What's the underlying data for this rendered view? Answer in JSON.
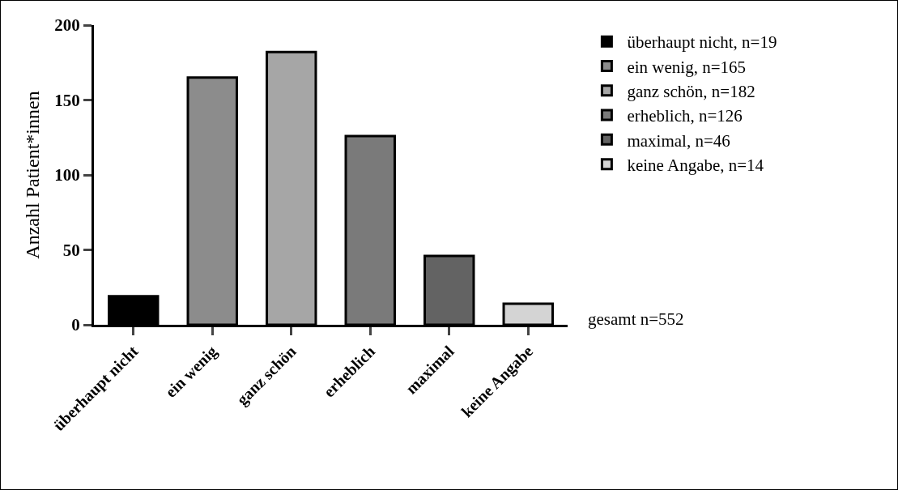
{
  "chart_data": {
    "type": "bar",
    "ylabel": "Anzahl Patient*innen",
    "categories": [
      "überhaupt nicht",
      "ein wenig",
      "ganz schön",
      "erheblich",
      "maximal",
      "keine Angabe"
    ],
    "series": [
      {
        "name": "überhaupt nicht, n=19",
        "color": "#000000",
        "values": [
          19,
          null,
          null,
          null,
          null,
          null
        ]
      },
      {
        "name": "ein wenig, n=165",
        "color": "#8c8c8c",
        "values": [
          null,
          165,
          null,
          null,
          null,
          null
        ]
      },
      {
        "name": "ganz schön, n=182",
        "color": "#a6a6a6",
        "values": [
          null,
          null,
          182,
          null,
          null,
          null
        ]
      },
      {
        "name": "erheblich, n=126",
        "color": "#7a7a7a",
        "values": [
          null,
          null,
          null,
          126,
          null,
          null
        ]
      },
      {
        "name": "maximal, n=46",
        "color": "#636363",
        "values": [
          null,
          null,
          null,
          null,
          46,
          null
        ]
      },
      {
        "name": "keine Angabe, n=14",
        "color": "#d4d4d4",
        "values": [
          null,
          null,
          null,
          null,
          null,
          14
        ]
      }
    ],
    "ylim": [
      0,
      200
    ],
    "yticks": [
      0,
      50,
      100,
      150,
      200
    ],
    "grid": false,
    "legend": "top right",
    "annotations": [
      "gesamt n=552"
    ]
  }
}
